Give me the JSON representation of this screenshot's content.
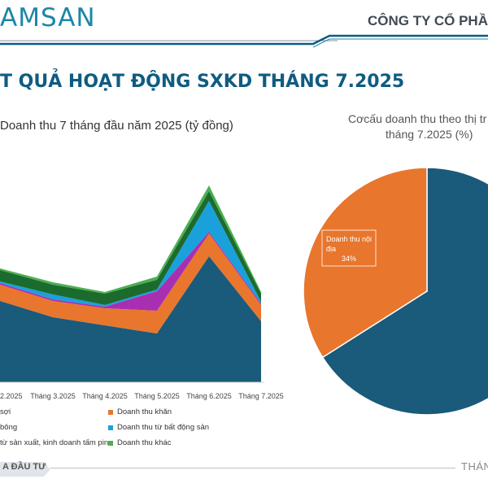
{
  "header": {
    "logo_text": "AMSAN",
    "company": "CÔNG TY CỔ PHẦN",
    "accent_color": "#1c86a8",
    "line_color": "#0f5c80"
  },
  "page_title": "T QUẢ HOẠT ĐỘNG SXKD THÁNG 7.2025",
  "left_chart": {
    "subtitle": "Doanh thu 7 tháng đầu năm 2025 (tỷ đồng)"
  },
  "pie_chart": {
    "title_line1": "Cơcấu doanh thu theo thị tr",
    "title_line2": "tháng 7.2025 (%)",
    "label_text_line1": "Doanh thu nội",
    "label_text_line2": "địa",
    "label_value": "34%"
  },
  "legend": [
    {
      "label": "sợi",
      "color": "#1a5a7a"
    },
    {
      "label": "Doanh thu khăn",
      "color": "#e8762d"
    },
    {
      "label": "bông",
      "color": "#a82fb2"
    },
    {
      "label": "Doanh thu từ bất động sản",
      "color": "#1aa1dc"
    },
    {
      "label": "từ sản xuất, kinh doanh tấm pin",
      "color": "#1c6b2e"
    },
    {
      "label": "Doanh thu khác",
      "color": "#4caf50"
    }
  ],
  "footer": {
    "left_text": "A ĐẦU TƯ",
    "right_text": "THÁNG"
  },
  "chart_data": [
    {
      "type": "area",
      "stacked": true,
      "categories": [
        "2.2025",
        "Tháng 3.2025",
        "Tháng 4.2025",
        "Tháng 5.2025",
        "Tháng 6.2025",
        "Tháng 7.2025"
      ],
      "series": [
        {
          "name": "sợi",
          "color": "#1a5a7a",
          "values": [
            100,
            80,
            70,
            60,
            155,
            75
          ]
        },
        {
          "name": "Doanh thu khăn",
          "color": "#e8762d",
          "values": [
            20,
            20,
            21,
            28,
            28,
            20
          ]
        },
        {
          "name": "bông",
          "color": "#a82fb2",
          "values": [
            2,
            2,
            2,
            24,
            2,
            2
          ]
        },
        {
          "name": "Doanh thu từ bất động sản",
          "color": "#1aa1dc",
          "values": [
            2,
            6,
            2,
            2,
            38,
            2
          ]
        },
        {
          "name": "từ sản xuất, kinh doanh tấm pin",
          "color": "#1c6b2e",
          "values": [
            14,
            12,
            14,
            12,
            12,
            10
          ]
        },
        {
          "name": "Doanh thu khác",
          "color": "#4caf50",
          "values": [
            2,
            3,
            2,
            4,
            7,
            2
          ]
        }
      ],
      "ylim": [
        0,
        235
      ],
      "grid": false
    },
    {
      "type": "pie",
      "slices": [
        {
          "name": "Doanh thu nội địa",
          "value": 34,
          "color": "#e8762d"
        },
        {
          "name": "",
          "value": 66,
          "color": "#1a5a7a"
        }
      ],
      "start_angle_deg": 0
    }
  ]
}
